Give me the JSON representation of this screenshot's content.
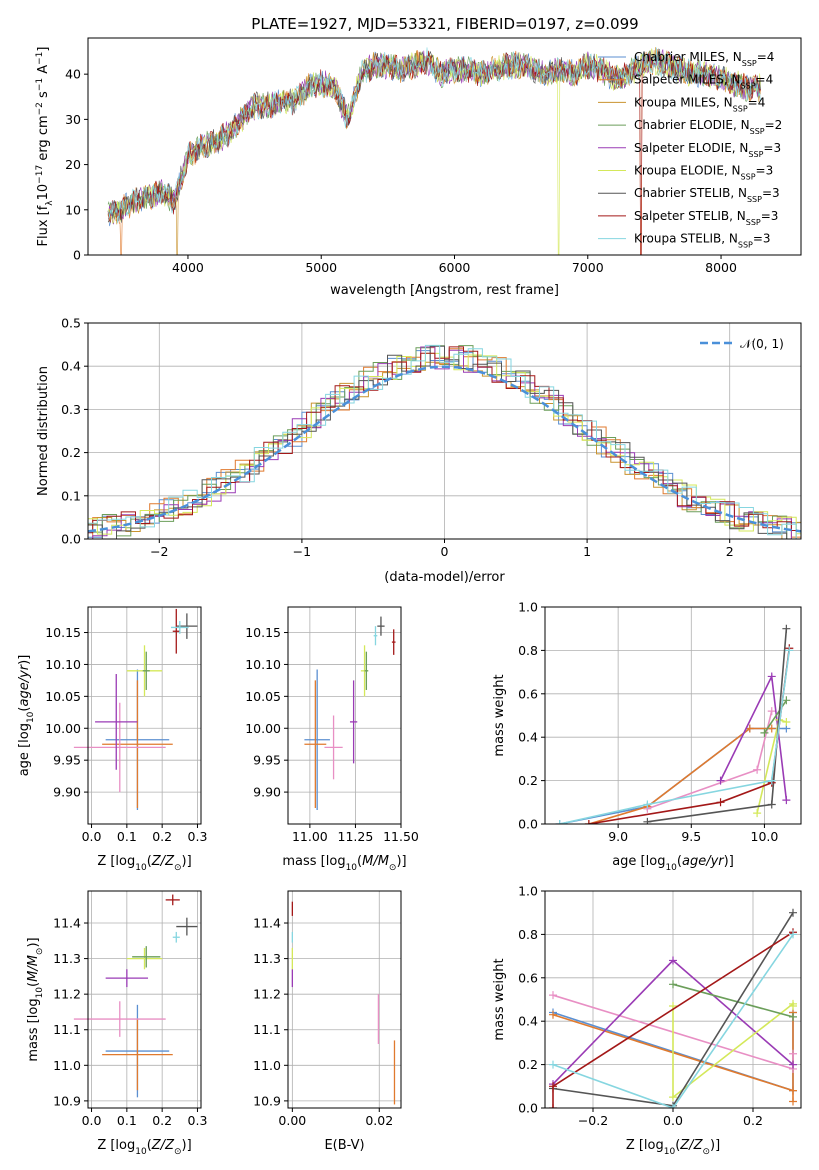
{
  "title": "PLATE=1927, MJD=53321, FIBERID=0197, z=0.099",
  "colors": {
    "chabrier_miles": "#5b8fd1",
    "salpeter_miles": "#e07a2e",
    "kroupa_miles": "#c9932f",
    "chabrier_elodie": "#6b9e5a",
    "salpeter_elodie": "#9a3bb5",
    "kroupa_elodie": "#d4e85a",
    "chabrier_stelib": "#555555",
    "salpeter_stelib": "#a31818",
    "kroupa_stelib": "#86d6e0",
    "normal_curve": "#4a90d9",
    "pink": "#e88fc4"
  },
  "legend": [
    {
      "key": "chabrier_miles",
      "label": "Chabrier MILES, N",
      "sub": "SSP",
      "tail": "=4"
    },
    {
      "key": "salpeter_miles",
      "label": "Salpeter MILES, N",
      "sub": "SSP",
      "tail": "=4"
    },
    {
      "key": "kroupa_miles",
      "label": "Kroupa MILES, N",
      "sub": "SSP",
      "tail": "=4"
    },
    {
      "key": "chabrier_elodie",
      "label": "Chabrier ELODIE, N",
      "sub": "SSP",
      "tail": "=2"
    },
    {
      "key": "salpeter_elodie",
      "label": "Salpeter ELODIE, N",
      "sub": "SSP",
      "tail": "=3"
    },
    {
      "key": "kroupa_elodie",
      "label": "Kroupa ELODIE, N",
      "sub": "SSP",
      "tail": "=3"
    },
    {
      "key": "chabrier_stelib",
      "label": "Chabrier STELIB, N",
      "sub": "SSP",
      "tail": "=3"
    },
    {
      "key": "salpeter_stelib",
      "label": "Salpeter STELIB, N",
      "sub": "SSP",
      "tail": "=3"
    },
    {
      "key": "kroupa_stelib",
      "label": "Kroupa STELIB, N",
      "sub": "SSP",
      "tail": "=3"
    }
  ],
  "chart_data": [
    {
      "id": "spectrum",
      "type": "line",
      "xlabel": "wavelength [Angstrom, rest frame]",
      "ylabel": "Flux [f_λ 10^-17 erg cm^-2 s^-1 A^-1]",
      "xlim": [
        3250,
        8600
      ],
      "ylim": [
        0,
        48
      ],
      "xticks": [
        4000,
        5000,
        6000,
        7000,
        8000
      ],
      "yticks": [
        0,
        10,
        20,
        30,
        40
      ],
      "grid": false,
      "legend_position": "top-right",
      "spectrum_x": [
        3400,
        3500,
        3600,
        3700,
        3800,
        3900,
        4000,
        4100,
        4200,
        4300,
        4400,
        4500,
        4600,
        4700,
        4800,
        4900,
        5000,
        5100,
        5200,
        5300,
        5400,
        5500,
        5600,
        5700,
        5800,
        5900,
        6000,
        6100,
        6200,
        6300,
        6400,
        6500,
        6600,
        6700,
        6800,
        6900,
        7000,
        7100,
        7200,
        7300,
        7400,
        7500,
        7600,
        7700,
        7800,
        7900,
        8000,
        8100,
        8200,
        8300
      ],
      "spectrum_y": [
        9,
        10,
        12,
        13,
        14,
        12,
        22,
        24,
        25,
        27,
        30,
        33,
        33,
        34,
        34,
        37,
        38,
        37,
        30,
        40,
        42,
        42,
        41,
        42,
        43,
        40,
        41,
        41,
        40,
        41,
        42,
        42,
        41,
        40,
        41,
        40,
        42,
        41,
        39,
        40,
        42,
        43,
        42,
        41,
        40,
        40,
        39,
        38,
        37,
        37
      ],
      "dropouts": [
        {
          "series": "salpeter_miles",
          "x": [
            3500,
            7400
          ]
        },
        {
          "series": "kroupa_miles",
          "x": [
            3920
          ]
        },
        {
          "series": "kroupa_elodie",
          "x": [
            6780
          ]
        },
        {
          "series": "salpeter_stelib",
          "x": [
            7400
          ]
        }
      ]
    },
    {
      "id": "residual_hist",
      "type": "line",
      "xlabel": "(data-model)/error",
      "ylabel": "Normed distribution",
      "xlim": [
        -2.5,
        2.5
      ],
      "ylim": [
        0,
        0.5
      ],
      "xticks": [
        -2,
        -1,
        0,
        1,
        2
      ],
      "yticks": [
        0.0,
        0.1,
        0.2,
        0.3,
        0.4,
        0.5
      ],
      "grid": true,
      "legend_position": "top-right",
      "legend_label": "𝒩(0, 1)",
      "bin_width": 0.1,
      "series": [
        "chabrier_miles",
        "salpeter_miles",
        "kroupa_miles",
        "chabrier_elodie",
        "salpeter_elodie",
        "kroupa_elodie",
        "chabrier_stelib",
        "salpeter_stelib",
        "kroupa_stelib"
      ]
    },
    {
      "id": "age_vs_Z",
      "type": "scatter",
      "xlabel": "Z [log10(Z/Z⊙)]",
      "ylabel": "age [log10(age/yr)]",
      "xlim": [
        -0.01,
        0.31
      ],
      "ylim": [
        9.85,
        10.19
      ],
      "xticks": [
        0.0,
        0.1,
        0.2,
        0.3
      ],
      "yticks": [
        9.9,
        9.95,
        10.0,
        10.05,
        10.1,
        10.15
      ],
      "grid": true,
      "points": [
        {
          "series": "chabrier_miles",
          "x": 0.13,
          "xerr": 0.09,
          "y": 9.982,
          "yerr": 0.11
        },
        {
          "series": "salpeter_miles",
          "x": 0.13,
          "xerr": 0.1,
          "y": 9.975,
          "yerr": 0.1
        },
        {
          "series": "pink",
          "x": 0.08,
          "xerr": 0.13,
          "y": 9.97,
          "yerr": 0.07
        },
        {
          "series": "salpeter_elodie",
          "x": 0.07,
          "xerr": 0.06,
          "y": 10.01,
          "yerr": 0.075
        },
        {
          "series": "kroupa_elodie",
          "x": 0.15,
          "xerr": 0.05,
          "y": 10.09,
          "yerr": 0.04
        },
        {
          "series": "chabrier_elodie",
          "x": 0.155,
          "xerr": 0.01,
          "y": 10.09,
          "yerr": 0.03
        },
        {
          "series": "chabrier_stelib",
          "x": 0.27,
          "xerr": 0.03,
          "y": 10.16,
          "yerr": 0.02
        },
        {
          "series": "salpeter_stelib",
          "x": 0.24,
          "xerr": 0.01,
          "y": 10.152,
          "yerr": 0.035
        },
        {
          "series": "kroupa_stelib",
          "x": 0.25,
          "xerr": 0.025,
          "y": 10.158,
          "yerr": 0.01
        }
      ]
    },
    {
      "id": "age_vs_mass",
      "type": "scatter",
      "xlabel": "mass [log10(M/M⊙)]",
      "ylabel": "",
      "xlim": [
        10.88,
        11.5
      ],
      "ylim": [
        9.85,
        10.19
      ],
      "xticks": [
        11.0,
        11.25,
        11.5
      ],
      "yticks": [
        9.9,
        9.95,
        10.0,
        10.05,
        10.1,
        10.15
      ],
      "grid": true,
      "points": [
        {
          "series": "chabrier_miles",
          "x": 11.04,
          "xerr": 0.07,
          "y": 9.982,
          "yerr": 0.11
        },
        {
          "series": "salpeter_miles",
          "x": 11.03,
          "xerr": 0.06,
          "y": 9.975,
          "yerr": 0.1
        },
        {
          "series": "pink",
          "x": 11.13,
          "xerr": 0.05,
          "y": 9.97,
          "yerr": 0.05
        },
        {
          "series": "salpeter_elodie",
          "x": 11.24,
          "xerr": 0.02,
          "y": 10.01,
          "yerr": 0.065
        },
        {
          "series": "kroupa_elodie",
          "x": 11.3,
          "xerr": 0.02,
          "y": 10.09,
          "yerr": 0.04
        },
        {
          "series": "chabrier_elodie",
          "x": 11.31,
          "xerr": 0.01,
          "y": 10.09,
          "yerr": 0.03
        },
        {
          "series": "chabrier_stelib",
          "x": 11.39,
          "xerr": 0.02,
          "y": 10.16,
          "yerr": 0.015
        },
        {
          "series": "salpeter_stelib",
          "x": 11.46,
          "xerr": 0.01,
          "y": 10.135,
          "yerr": 0.02
        },
        {
          "series": "kroupa_stelib",
          "x": 11.36,
          "xerr": 0.01,
          "y": 10.145,
          "yerr": 0.015
        }
      ]
    },
    {
      "id": "weight_vs_age",
      "type": "line",
      "xlabel": "age [log10(age/yr)]",
      "ylabel": "mass weight",
      "xlim": [
        8.5,
        10.25
      ],
      "ylim": [
        0,
        1
      ],
      "xticks": [
        9.0,
        9.5,
        10.0
      ],
      "yticks": [
        0.0,
        0.2,
        0.4,
        0.6,
        0.8,
        1.0
      ],
      "grid": true,
      "lines": [
        {
          "series": "chabrier_miles",
          "x": [
            8.6,
            9.2,
            9.9,
            10.15
          ],
          "y": [
            0.0,
            0.08,
            0.44,
            0.44
          ]
        },
        {
          "series": "salpeter_miles",
          "x": [
            8.8,
            9.2,
            9.9,
            10.05
          ],
          "y": [
            0.0,
            0.08,
            0.44,
            0.44
          ]
        },
        {
          "series": "pink",
          "x": [
            9.2,
            9.95,
            10.05
          ],
          "y": [
            0.07,
            0.25,
            0.52
          ]
        },
        {
          "series": "salpeter_elodie",
          "x": [
            9.7,
            10.05,
            10.15
          ],
          "y": [
            0.2,
            0.68,
            0.11
          ]
        },
        {
          "series": "kroupa_elodie",
          "x": [
            9.95,
            10.1,
            10.15
          ],
          "y": [
            0.05,
            0.48,
            0.47
          ]
        },
        {
          "series": "chabrier_elodie",
          "x": [
            10.0,
            10.15
          ],
          "y": [
            0.42,
            0.57
          ]
        },
        {
          "series": "chabrier_stelib",
          "x": [
            9.2,
            10.05,
            10.15
          ],
          "y": [
            0.01,
            0.09,
            0.9
          ]
        },
        {
          "series": "salpeter_stelib",
          "x": [
            8.8,
            9.7,
            10.05,
            10.17
          ],
          "y": [
            0.0,
            0.1,
            0.19,
            0.81
          ]
        },
        {
          "series": "kroupa_stelib",
          "x": [
            8.6,
            9.2,
            10.05,
            10.17
          ],
          "y": [
            0.0,
            0.09,
            0.2,
            0.8
          ]
        }
      ]
    },
    {
      "id": "mass_vs_Z",
      "type": "scatter",
      "xlabel": "Z [log10(Z/Z⊙)]",
      "ylabel": "mass [log10(M/M⊙)]",
      "xlim": [
        -0.01,
        0.31
      ],
      "ylim": [
        10.88,
        11.49
      ],
      "xticks": [
        0.0,
        0.1,
        0.2,
        0.3
      ],
      "yticks": [
        10.9,
        11.0,
        11.1,
        11.2,
        11.3,
        11.4
      ],
      "grid": true,
      "points": [
        {
          "series": "chabrier_miles",
          "x": 0.13,
          "xerr": 0.09,
          "y": 11.04,
          "yerr": 0.13
        },
        {
          "series": "salpeter_miles",
          "x": 0.13,
          "xerr": 0.1,
          "y": 11.03,
          "yerr": 0.1
        },
        {
          "series": "pink",
          "x": 0.08,
          "xerr": 0.13,
          "y": 11.13,
          "yerr": 0.05
        },
        {
          "series": "salpeter_elodie",
          "x": 0.1,
          "xerr": 0.06,
          "y": 11.245,
          "yerr": 0.025
        },
        {
          "series": "kroupa_elodie",
          "x": 0.15,
          "xerr": 0.05,
          "y": 11.3,
          "yerr": 0.03
        },
        {
          "series": "chabrier_elodie",
          "x": 0.155,
          "xerr": 0.04,
          "y": 11.305,
          "yerr": 0.03
        },
        {
          "series": "chabrier_stelib",
          "x": 0.27,
          "xerr": 0.03,
          "y": 11.39,
          "yerr": 0.025
        },
        {
          "series": "salpeter_stelib",
          "x": 0.23,
          "xerr": 0.02,
          "y": 11.465,
          "yerr": 0.015
        },
        {
          "series": "kroupa_stelib",
          "x": 0.24,
          "xerr": 0.01,
          "y": 11.36,
          "yerr": 0.015
        }
      ]
    },
    {
      "id": "mass_vs_ebv",
      "type": "scatter",
      "xlabel": "E(B-V)",
      "ylabel": "",
      "xlim": [
        -0.001,
        0.025
      ],
      "ylim": [
        10.88,
        11.49
      ],
      "xticks": [
        0.0,
        0.02
      ],
      "yticks": [
        10.9,
        11.0,
        11.1,
        11.2,
        11.3,
        11.4
      ],
      "grid": true,
      "points": [
        {
          "series": "salpeter_miles",
          "x": 0.0235,
          "xerr": 0.0,
          "y": 10.98,
          "yerr": 0.09
        },
        {
          "series": "pink",
          "x": 0.0198,
          "xerr": 0.0,
          "y": 11.13,
          "yerr": 0.07
        },
        {
          "series": "salpeter_elodie",
          "x": 0.0,
          "xerr": 0.0,
          "y": 11.245,
          "yerr": 0.025
        },
        {
          "series": "kroupa_elodie",
          "x": 0.0,
          "xerr": 0.0,
          "y": 11.3,
          "yerr": 0.03
        },
        {
          "series": "kroupa_stelib",
          "x": 0.0,
          "xerr": 0.0,
          "y": 11.36,
          "yerr": 0.015
        },
        {
          "series": "salpeter_stelib",
          "x": 0.0,
          "xerr": 0.0,
          "y": 11.44,
          "yerr": 0.02
        }
      ]
    },
    {
      "id": "weight_vs_Z",
      "type": "line",
      "xlabel": "Z [log10(Z/Z⊙)]",
      "ylabel": "mass weight",
      "xlim": [
        -0.32,
        0.32
      ],
      "ylim": [
        0,
        1
      ],
      "xticks": [
        -0.2,
        0.0,
        0.2
      ],
      "yticks": [
        0.0,
        0.2,
        0.4,
        0.6,
        0.8,
        1.0
      ],
      "grid": true,
      "lines": [
        {
          "series": "chabrier_miles",
          "x": [
            -0.3,
            0.3,
            0.3
          ],
          "y": [
            0.44,
            0.08,
            0.44
          ]
        },
        {
          "series": "salpeter_miles",
          "x": [
            -0.3,
            0.3,
            0.3,
            0.3
          ],
          "y": [
            0.43,
            0.08,
            0.03,
            0.44
          ]
        },
        {
          "series": "pink",
          "x": [
            -0.3,
            0.3,
            0.3
          ],
          "y": [
            0.52,
            0.18,
            0.25
          ]
        },
        {
          "series": "salpeter_elodie",
          "x": [
            -0.3,
            0.0,
            0.3
          ],
          "y": [
            0.11,
            0.68,
            0.2
          ]
        },
        {
          "series": "kroupa_elodie",
          "x": [
            0.0,
            0.0,
            0.3,
            0.3
          ],
          "y": [
            0.47,
            0.05,
            0.48,
            0.47
          ]
        },
        {
          "series": "chabrier_elodie",
          "x": [
            0.0,
            0.3
          ],
          "y": [
            0.57,
            0.42
          ]
        },
        {
          "series": "chabrier_stelib",
          "x": [
            -0.3,
            0.0,
            0.3
          ],
          "y": [
            0.09,
            0.01,
            0.9
          ]
        },
        {
          "series": "salpeter_stelib",
          "x": [
            -0.3,
            -0.3,
            0.3
          ],
          "y": [
            0.0,
            0.1,
            0.81
          ]
        },
        {
          "series": "kroupa_stelib",
          "x": [
            -0.3,
            0.0,
            0.3
          ],
          "y": [
            0.2,
            0.0,
            0.8
          ]
        }
      ]
    }
  ]
}
